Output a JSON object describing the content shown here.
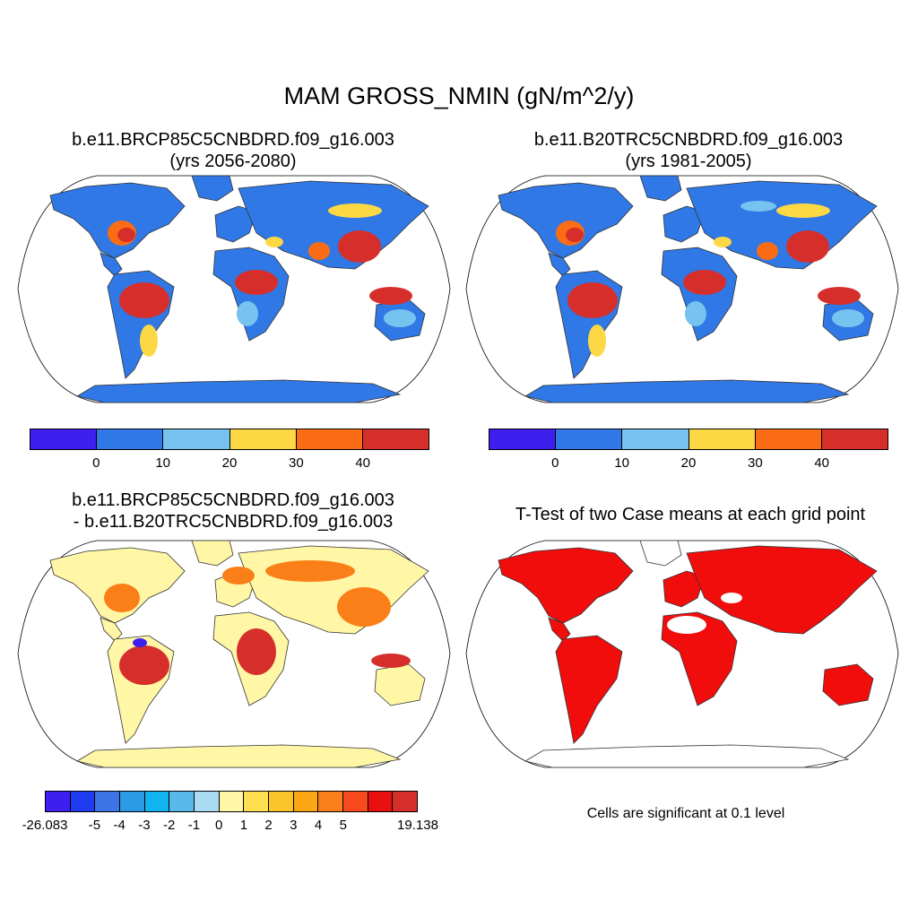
{
  "title": "MAM GROSS_NMIN (gN/m^2/y)",
  "panels": {
    "top_left": {
      "title_line1": "b.e11.BRCP85C5CNBDRD.f09_g16.003",
      "title_line2": "(yrs 2056-2080)"
    },
    "top_right": {
      "title_line1": "b.e11.B20TRC5CNBDRD.f09_g16.003",
      "title_line2": "(yrs 1981-2005)"
    },
    "bottom_left": {
      "title_line1": "b.e11.BRCP85C5CNBDRD.f09_g16.003",
      "title_line2": "- b.e11.B20TRC5CNBDRD.f09_g16.003"
    },
    "bottom_right": {
      "title_line1": "T-Test of two Case means at each grid point",
      "note": "Cells are significant at 0.1 level"
    }
  },
  "colorbar_main": {
    "colors": [
      "#3d1ff0",
      "#2f78e6",
      "#76c3ef",
      "#fcd845",
      "#fa6d16",
      "#d62f2b"
    ],
    "labels": [
      "0",
      "10",
      "20",
      "30",
      "40"
    ]
  },
  "colorbar_diff": {
    "colors": [
      "#3d1ff0",
      "#1f3cf0",
      "#3c76e6",
      "#2b9be8",
      "#10b4ee",
      "#5ab9ec",
      "#a9dbf2",
      "#fff7a6",
      "#fde050",
      "#fbc52a",
      "#fba613",
      "#fa7f19",
      "#f94a1e",
      "#e81010",
      "#d62f2b"
    ],
    "labels": [
      "-26.083",
      "-5",
      "-4",
      "-3",
      "-2",
      "-1",
      "0",
      "1",
      "2",
      "3",
      "4",
      "5",
      "19.138"
    ]
  },
  "colors": {
    "ocean_bg": "#ffffff",
    "main_land": "#2f78e6",
    "main_high": "#d62f2b",
    "main_mid": "#fa6d16",
    "main_yellow": "#fcd845",
    "main_light": "#76c3ef",
    "diff_land": "#fff7a6",
    "diff_high": "#d62f2b",
    "diff_mid": "#fa7f19",
    "ttest_red": "#f20d0d"
  }
}
